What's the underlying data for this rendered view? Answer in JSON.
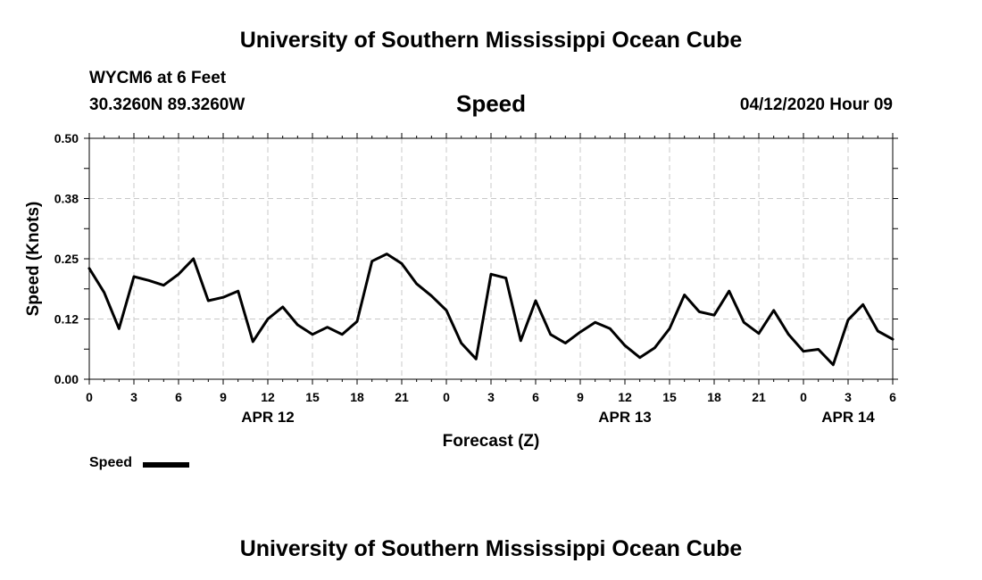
{
  "header": {
    "title_top": "University of Southern Mississippi Ocean Cube",
    "station": "WYCM6 at 6 Feet",
    "coords": "30.3260N 89.3260W",
    "datetime": "04/12/2020 Hour 09"
  },
  "footer": {
    "title_bottom": "University of Southern Mississippi Ocean Cube"
  },
  "legend": {
    "label": "Speed"
  },
  "colors": {
    "line": "#000000",
    "grid": "#c8c8c8",
    "axis": "#000000"
  },
  "chart_data": {
    "type": "line",
    "title": "Speed",
    "xlabel": "Forecast (Z)",
    "ylabel": "Speed (Knots)",
    "ylim": [
      0,
      0.5
    ],
    "y_ticks": [
      0.0,
      0.125,
      0.25,
      0.375,
      0.5
    ],
    "y_tick_labels": [
      "0.00",
      "0.12",
      "0.25",
      "0.38",
      "0.50"
    ],
    "xlim": [
      0,
      54
    ],
    "x_ticks": [
      0,
      3,
      6,
      9,
      12,
      15,
      18,
      21,
      24,
      27,
      30,
      33,
      36,
      39,
      42,
      45,
      48,
      51,
      54
    ],
    "x_tick_labels": [
      "0",
      "3",
      "6",
      "9",
      "12",
      "15",
      "18",
      "21",
      "0",
      "3",
      "6",
      "9",
      "12",
      "15",
      "18",
      "21",
      "0",
      "3",
      "6"
    ],
    "date_labels": [
      {
        "x": 12,
        "label": "APR 12"
      },
      {
        "x": 36,
        "label": "APR 13"
      },
      {
        "x": 51,
        "label": "APR 14"
      }
    ],
    "grid": true,
    "legend_position": "bottom-left",
    "series": [
      {
        "name": "Speed",
        "x": [
          0,
          1,
          2,
          3,
          4,
          5,
          6,
          7,
          8,
          9,
          10,
          11,
          12,
          13,
          14,
          15,
          16,
          17,
          18,
          19,
          20,
          21,
          22,
          23,
          24,
          25,
          26,
          27,
          28,
          29,
          30,
          31,
          32,
          33,
          34,
          35,
          36,
          37,
          38,
          39,
          40,
          41,
          42,
          43,
          44,
          45,
          46,
          47,
          48,
          49,
          50,
          51,
          52,
          53,
          54
        ],
        "values": [
          0.23,
          0.18,
          0.105,
          0.213,
          0.205,
          0.195,
          0.218,
          0.25,
          0.163,
          0.17,
          0.183,
          0.078,
          0.125,
          0.15,
          0.113,
          0.093,
          0.108,
          0.093,
          0.12,
          0.245,
          0.26,
          0.24,
          0.198,
          0.173,
          0.143,
          0.075,
          0.042,
          0.218,
          0.21,
          0.08,
          0.163,
          0.093,
          0.075,
          0.098,
          0.118,
          0.105,
          0.07,
          0.045,
          0.065,
          0.105,
          0.175,
          0.14,
          0.133,
          0.183,
          0.118,
          0.095,
          0.143,
          0.093,
          0.058,
          0.062,
          0.03,
          0.123,
          0.155,
          0.1,
          0.083
        ]
      }
    ]
  }
}
